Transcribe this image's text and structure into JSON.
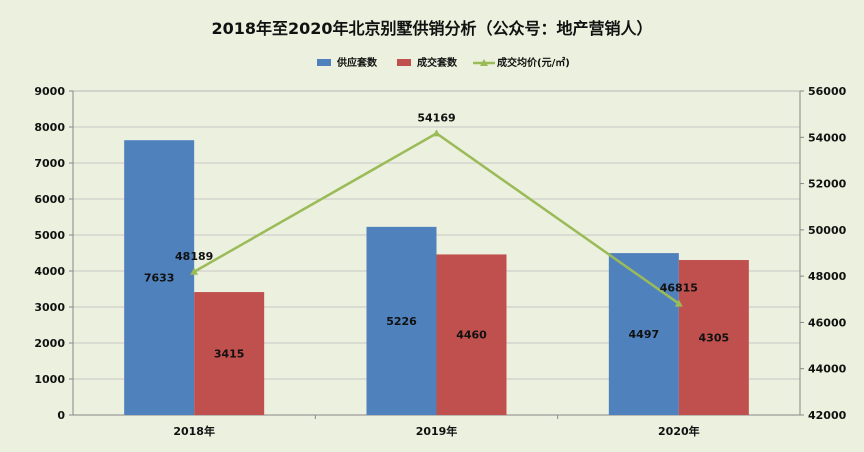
{
  "chart_data": {
    "type": "bar",
    "title": "2018年至2020年北京别墅供销分析（公众号：地产营销人）",
    "categories": [
      "2018年",
      "2019年",
      "2020年"
    ],
    "series": [
      {
        "name": "供应套数",
        "type": "bar",
        "axis": "left",
        "color": "#4f81bd",
        "values": [
          7633,
          5226,
          4497
        ]
      },
      {
        "name": "成交套数",
        "type": "bar",
        "axis": "left",
        "color": "#c0504d",
        "values": [
          3415,
          4460,
          4305
        ]
      },
      {
        "name": "成交均价(元/㎡)",
        "type": "line",
        "axis": "right",
        "color": "#9bbb59",
        "values": [
          48189,
          54169,
          46815
        ]
      }
    ],
    "y_left": {
      "min": 0,
      "max": 9000,
      "step": 1000
    },
    "y_right": {
      "min": 42000,
      "max": 56000,
      "step": 2000
    },
    "legend": "top-center",
    "grid": true,
    "background": "#ebf1de"
  }
}
